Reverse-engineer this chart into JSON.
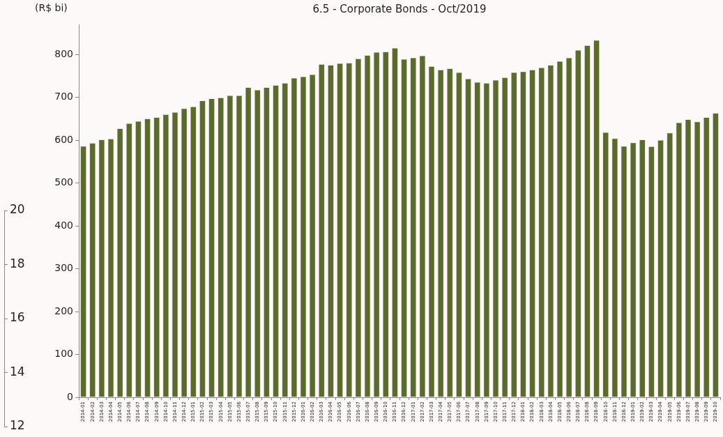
{
  "chart_data": [
    {
      "type": "bar",
      "title": "6.5 - Corporate Bonds - Oct/2019",
      "ylabel": "(R$ bi)",
      "color": "#5a6b2e",
      "categories": [
        "2014-01",
        "2014-02",
        "2014-03",
        "2014-04",
        "2014-05",
        "2014-06",
        "2014-07",
        "2014-08",
        "2014-09",
        "2014-10",
        "2014-11",
        "2014-12",
        "2015-01",
        "2015-02",
        "2015-03",
        "2015-04",
        "2015-05",
        "2015-06",
        "2015-07",
        "2015-08",
        "2015-09",
        "2015-10",
        "2015-11",
        "2015-12",
        "2016-01",
        "2016-02",
        "2016-03",
        "2016-04",
        "2016-05",
        "2016-06",
        "2016-07",
        "2016-08",
        "2016-09",
        "2016-10",
        "2016-11",
        "2016-12",
        "2017-01",
        "2017-02",
        "2017-03",
        "2017-04",
        "2017-05",
        "2017-06",
        "2017-07",
        "2017-08",
        "2017-09",
        "2017-10",
        "2017-11",
        "2017-12",
        "2018-01",
        "2018-02",
        "2018-03",
        "2018-04",
        "2018-05",
        "2018-06",
        "2018-07",
        "2018-08",
        "2018-09",
        "2018-10",
        "2018-11",
        "2018-12",
        "2019-01",
        "2019-02",
        "2019-03",
        "2019-04",
        "2019-05",
        "2019-06",
        "2019-07",
        "2019-08",
        "2019-09",
        "2019-10"
      ],
      "values": [
        586,
        593,
        601,
        603,
        627,
        639,
        644,
        650,
        653,
        660,
        665,
        674,
        678,
        692,
        697,
        699,
        704,
        704,
        723,
        717,
        723,
        728,
        733,
        745,
        748,
        753,
        777,
        775,
        779,
        780,
        790,
        798,
        805,
        806,
        815,
        789,
        792,
        797,
        772,
        764,
        767,
        758,
        743,
        735,
        733,
        740,
        746,
        758,
        760,
        764,
        769,
        775,
        784,
        792,
        810,
        821,
        833,
        618,
        604,
        586,
        594,
        601,
        585,
        600,
        617,
        641,
        648,
        643,
        653,
        663
      ],
      "ylim": [
        0,
        870
      ],
      "yticks": [
        0,
        100,
        200,
        300,
        400,
        500,
        600,
        700,
        800
      ],
      "grid": false,
      "y2lim": [
        12,
        20
      ],
      "y2ticks": [
        12,
        14,
        16,
        18,
        20
      ]
    }
  ]
}
